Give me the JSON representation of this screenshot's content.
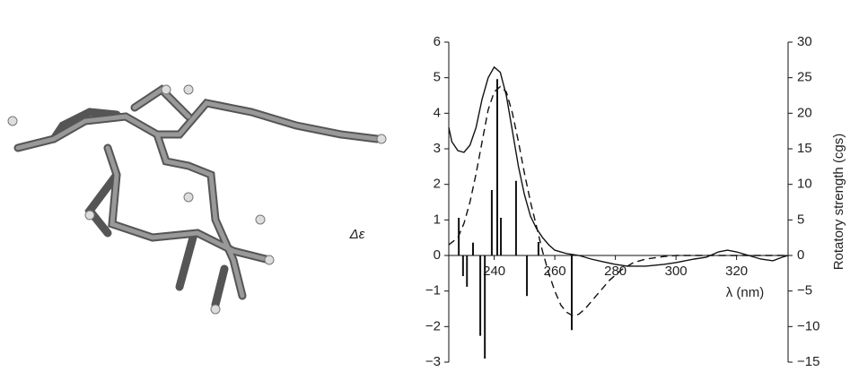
{
  "chart_data": {
    "type": "line",
    "xlabel": "λ (nm)",
    "ylabel": "Δε",
    "y2label": "Rotatory strength (cgs)",
    "xlim": [
      225,
      337
    ],
    "xticks": [
      240,
      260,
      280,
      300,
      320
    ],
    "ylim": [
      -3,
      6
    ],
    "yticks": [
      {
        "value": -3,
        "label": "−3"
      },
      {
        "value": -2,
        "label": "−2"
      },
      {
        "value": -1,
        "label": "−1"
      },
      0,
      1,
      2,
      3,
      4,
      5,
      6
    ],
    "y2lim": [
      -15,
      30
    ],
    "y2ticks": [
      {
        "value": -15,
        "label": "−15"
      },
      {
        "value": -10,
        "label": "−10"
      },
      {
        "value": -5,
        "label": "−5"
      },
      0,
      5,
      10,
      15,
      20,
      25,
      30
    ],
    "series": [
      {
        "style": "solid",
        "color": "#111111",
        "x": [
          225,
          226,
          228,
          230,
          232,
          234,
          236,
          238,
          240,
          242,
          244,
          246,
          248,
          250,
          252,
          254,
          256,
          258,
          260,
          264,
          268,
          272,
          276,
          280,
          284,
          290,
          296,
          300,
          306,
          310,
          314,
          317,
          320,
          324,
          328,
          332,
          335,
          337
        ],
        "values": [
          3.6,
          3.2,
          2.95,
          2.9,
          3.1,
          3.6,
          4.4,
          5.0,
          5.3,
          5.15,
          4.5,
          3.5,
          2.5,
          1.7,
          1.1,
          0.75,
          0.5,
          0.3,
          0.15,
          0.05,
          0,
          -0.1,
          -0.18,
          -0.25,
          -0.3,
          -0.3,
          -0.25,
          -0.2,
          -0.1,
          -0.05,
          0.1,
          0.15,
          0.1,
          0,
          -0.1,
          -0.15,
          -0.05,
          0
        ]
      },
      {
        "style": "dashed",
        "color": "#111111",
        "x": [
          225,
          228,
          230,
          232,
          234,
          236,
          238,
          240,
          242,
          244,
          246,
          248,
          250,
          252,
          254,
          256,
          258,
          260,
          262,
          264,
          266,
          268,
          270,
          274,
          278,
          282,
          286,
          290,
          296,
          300,
          337
        ],
        "values": [
          0.3,
          0.5,
          0.9,
          1.5,
          2.3,
          3.2,
          4.1,
          4.6,
          4.75,
          4.6,
          4.0,
          3.2,
          2.3,
          1.5,
          0.8,
          0.1,
          -0.5,
          -1.0,
          -1.4,
          -1.6,
          -1.7,
          -1.65,
          -1.5,
          -1.1,
          -0.7,
          -0.4,
          -0.2,
          -0.1,
          -0.03,
          0,
          0
        ]
      },
      {
        "style": "stick",
        "axis": "y2",
        "color": "#111111",
        "x": [
          228.3,
          229.7,
          231,
          233,
          235.4,
          236.9,
          239.2,
          241,
          242.2,
          247.2,
          250.8,
          254.6,
          265.6
        ],
        "values": [
          5.3,
          -2.9,
          -4.4,
          1.8,
          -11.3,
          -14.5,
          9.2,
          24.8,
          5.3,
          10.5,
          -5.7,
          1.9,
          -10.5
        ]
      }
    ]
  }
}
